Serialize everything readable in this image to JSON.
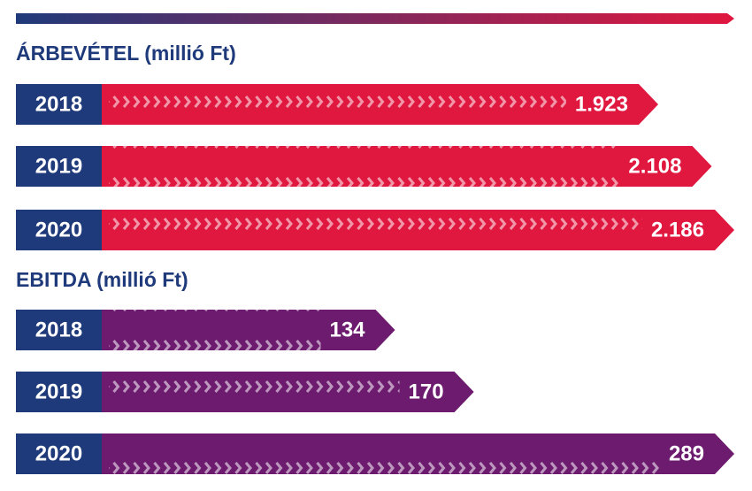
{
  "chart_data": [
    {
      "type": "bar",
      "orientation": "horizontal",
      "title": "ÁRBEVÉTEL (millió Ft)",
      "categories": [
        "2018",
        "2019",
        "2020"
      ],
      "values": [
        1923,
        2108,
        2186
      ],
      "value_labels": [
        "1.923",
        "2.108",
        "2.186"
      ],
      "color": "#e0173f"
    },
    {
      "type": "bar",
      "orientation": "horizontal",
      "title": "EBITDA (millió Ft)",
      "categories": [
        "2018",
        "2019",
        "2020"
      ],
      "values": [
        134,
        170,
        289
      ],
      "value_labels": [
        "134",
        "170",
        "289"
      ],
      "color": "#6d1b6f"
    }
  ]
}
